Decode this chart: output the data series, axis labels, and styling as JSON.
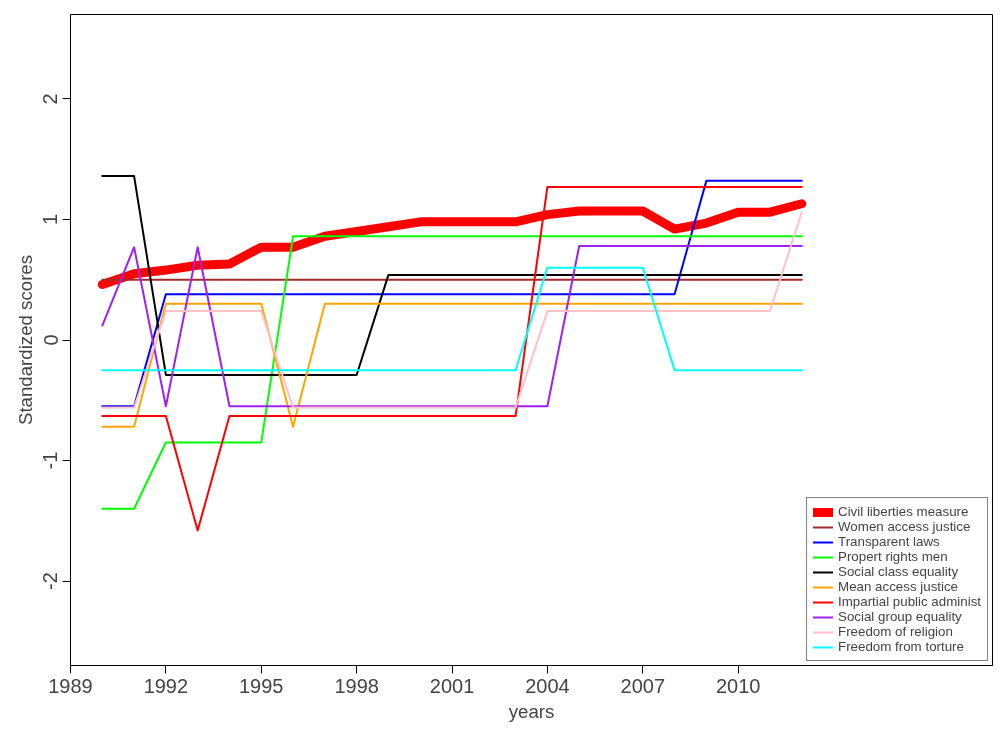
{
  "chart_data": {
    "type": "line",
    "xlabel": "years",
    "ylabel": "Standardized scores",
    "x": [
      1990,
      1991,
      1992,
      1993,
      1994,
      1995,
      1996,
      1997,
      1998,
      1999,
      2000,
      2001,
      2002,
      2003,
      2004,
      2005,
      2006,
      2007,
      2008,
      2009,
      2010,
      2011,
      2012
    ],
    "xlim": [
      1989,
      2018
    ],
    "xticks": [
      1989,
      1992,
      1995,
      1998,
      2001,
      2004,
      2007,
      2010
    ],
    "ylim": [
      -2.7,
      2.7
    ],
    "yticks": [
      -2,
      -1,
      0,
      1,
      2
    ],
    "grid": false,
    "legend": "bottom right",
    "marker": "none",
    "line_style": "solid",
    "series": [
      {
        "name": "Civil liberties measure",
        "color": "#ff0000",
        "values": [
          0.46,
          0.55,
          0.58,
          0.62,
          0.63,
          0.77,
          0.77,
          0.86,
          0.9,
          0.94,
          0.98,
          0.98,
          0.98,
          0.98,
          1.04,
          1.07,
          1.07,
          1.07,
          0.92,
          0.97,
          1.06,
          1.06,
          1.13
        ]
      },
      {
        "name": "Women access justice",
        "color": "#a52a2a",
        "values": [
          0.5,
          0.5,
          0.5,
          0.5,
          0.5,
          0.5,
          0.5,
          0.5,
          0.5,
          0.5,
          0.5,
          0.5,
          0.5,
          0.5,
          0.5,
          0.5,
          0.5,
          0.5,
          0.5,
          0.5,
          0.5,
          0.5,
          0.5
        ]
      },
      {
        "name": "Transparent laws",
        "color": "#0000ff",
        "values": [
          -0.55,
          -0.55,
          0.38,
          0.38,
          0.38,
          0.38,
          0.38,
          0.38,
          0.38,
          0.38,
          0.38,
          0.38,
          0.38,
          0.38,
          0.38,
          0.38,
          0.38,
          0.38,
          0.38,
          1.32,
          1.32,
          1.32,
          1.32
        ]
      },
      {
        "name": "Propert rights men",
        "color": "#00ff00",
        "values": [
          -1.4,
          -1.4,
          -0.85,
          -0.85,
          -0.85,
          -0.85,
          0.86,
          0.86,
          0.86,
          0.86,
          0.86,
          0.86,
          0.86,
          0.86,
          0.86,
          0.86,
          0.86,
          0.86,
          0.86,
          0.86,
          0.86,
          0.86,
          0.86
        ]
      },
      {
        "name": "Social class equality",
        "color": "#000000",
        "values": [
          1.36,
          1.36,
          -0.29,
          -0.29,
          -0.29,
          -0.29,
          -0.29,
          -0.29,
          -0.29,
          0.54,
          0.54,
          0.54,
          0.54,
          0.54,
          0.54,
          0.54,
          0.54,
          0.54,
          0.54,
          0.54,
          0.54,
          0.54,
          0.54
        ]
      },
      {
        "name": "Mean access justice",
        "color": "#ffa500",
        "values": [
          -0.72,
          -0.72,
          0.3,
          0.3,
          0.3,
          0.3,
          -0.72,
          0.3,
          0.3,
          0.3,
          0.3,
          0.3,
          0.3,
          0.3,
          0.3,
          0.3,
          0.3,
          0.3,
          0.3,
          0.3,
          0.3,
          0.3,
          0.3
        ]
      },
      {
        "name": "Impartial public administ",
        "color": "#ff0000",
        "values": [
          -0.63,
          -0.63,
          -0.63,
          -1.58,
          -0.63,
          -0.63,
          -0.63,
          -0.63,
          -0.63,
          -0.63,
          -0.63,
          -0.63,
          -0.63,
          -0.63,
          1.27,
          1.27,
          1.27,
          1.27,
          1.27,
          1.27,
          1.27,
          1.27,
          1.27
        ]
      },
      {
        "name": "Social group equality",
        "color": "#a020f0",
        "values": [
          0.12,
          0.77,
          -0.55,
          0.77,
          -0.55,
          -0.55,
          -0.55,
          -0.55,
          -0.55,
          -0.55,
          -0.55,
          -0.55,
          -0.55,
          -0.55,
          -0.55,
          0.78,
          0.78,
          0.78,
          0.78,
          0.78,
          0.78,
          0.78,
          0.78
        ]
      },
      {
        "name": "Freedom of religion",
        "color": "#ffc0cb",
        "values": [
          -0.56,
          -0.56,
          0.24,
          0.24,
          0.24,
          0.24,
          -0.56,
          -0.56,
          -0.56,
          -0.56,
          -0.56,
          -0.56,
          -0.56,
          -0.56,
          0.24,
          0.24,
          0.24,
          0.24,
          0.24,
          0.24,
          0.24,
          0.24,
          1.06
        ]
      },
      {
        "name": "Freedom from torture",
        "color": "#00ffff",
        "values": [
          -0.25,
          -0.25,
          -0.25,
          -0.25,
          -0.25,
          -0.25,
          -0.25,
          -0.25,
          -0.25,
          -0.25,
          -0.25,
          -0.25,
          -0.25,
          -0.25,
          0.6,
          0.6,
          0.6,
          0.6,
          -0.25,
          -0.25,
          -0.25,
          -0.25,
          -0.25
        ]
      }
    ]
  }
}
